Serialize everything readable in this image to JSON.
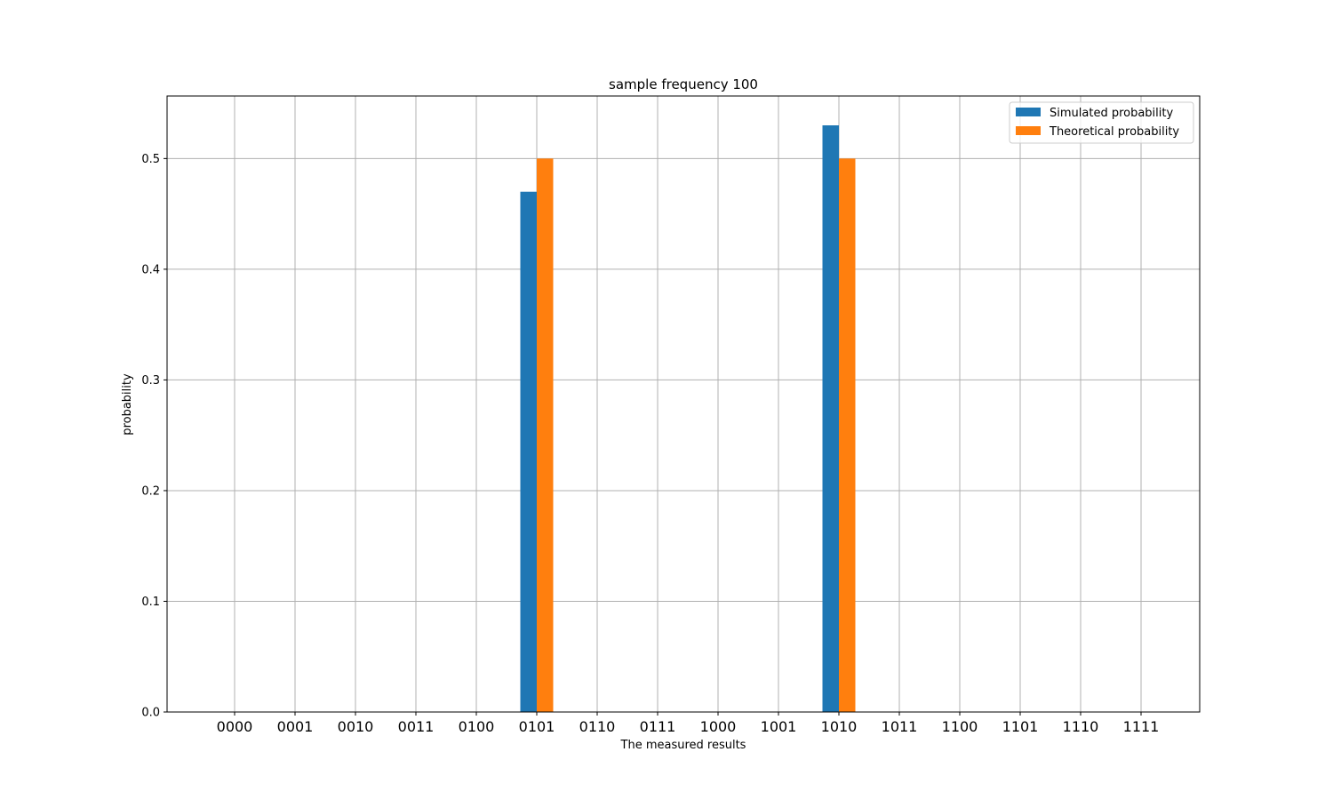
{
  "chart_data": {
    "type": "bar",
    "title": "sample frequency 100",
    "xlabel": "The measured results",
    "ylabel": "probability",
    "categories": [
      "0000",
      "0001",
      "0010",
      "0011",
      "0100",
      "0101",
      "0110",
      "0111",
      "1000",
      "1001",
      "1010",
      "1011",
      "1100",
      "1101",
      "1110",
      "1111"
    ],
    "series": [
      {
        "name": "Simulated probability",
        "color": "#1f77b4",
        "values": [
          0,
          0,
          0,
          0,
          0,
          0.47,
          0,
          0,
          0,
          0,
          0.53,
          0,
          0,
          0,
          0,
          0
        ]
      },
      {
        "name": "Theoretical probability",
        "color": "#ff7f0e",
        "values": [
          0,
          0,
          0,
          0,
          0,
          0.5,
          0,
          0,
          0,
          0,
          0.5,
          0,
          0,
          0,
          0,
          0
        ]
      }
    ],
    "ylim": [
      0,
      0.5565
    ],
    "yticks": [
      "0.0",
      "0.1",
      "0.2",
      "0.3",
      "0.4",
      "0.5"
    ],
    "grid": true,
    "legend_position": "upper right"
  }
}
